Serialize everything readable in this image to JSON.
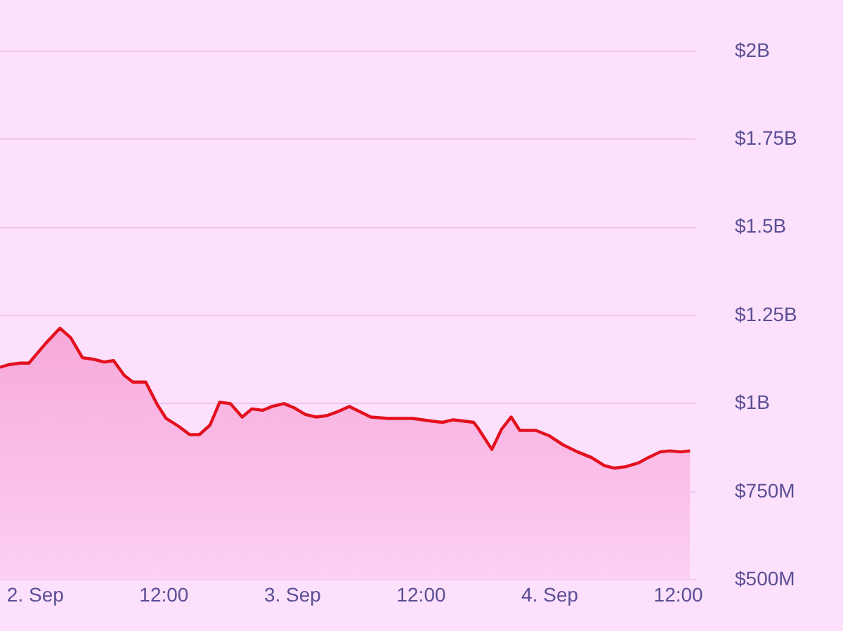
{
  "chart_data": {
    "type": "area",
    "x": [
      "--09-01T20:42",
      "--09-01T21:36",
      "--09-01T22:36",
      "--09-01T23:24",
      "--09-02T01:00",
      "--09-02T02:18",
      "--09-02T03:18",
      "--09-02T04:24",
      "--09-02T05:24",
      "--09-02T06:24",
      "--09-02T07:18",
      "--09-02T08:18",
      "--09-02T09:06",
      "--09-02T10:18",
      "--09-02T11:24",
      "--09-02T12:12",
      "--09-02T13:24",
      "--09-02T14:24",
      "--09-02T15:18",
      "--09-02T16:18",
      "--09-02T17:12",
      "--09-02T18:12",
      "--09-02T19:18",
      "--09-02T20:12",
      "--09-02T21:12",
      "--09-02T22:06",
      "--09-02T23:12",
      "--09-03T00:06",
      "--09-03T01:12",
      "--09-03T02:12",
      "--09-03T03:12",
      "--09-03T04:12",
      "--09-03T05:18",
      "--09-03T06:18",
      "--09-03T07:18",
      "--09-03T08:54",
      "--09-03T11:12",
      "--09-03T13:06",
      "--09-03T14:00",
      "--09-03T15:00",
      "--09-03T16:54",
      "--09-03T17:18",
      "--09-03T18:36",
      "--09-03T19:30",
      "--09-03T20:24",
      "--09-03T21:12",
      "--09-03T22:42",
      "--09-04T00:00",
      "--09-04T01:18",
      "--09-04T02:36",
      "--09-04T03:54",
      "--09-04T05:06",
      "--09-04T06:00",
      "--09-04T07:06",
      "--09-04T08:18",
      "--09-04T09:12",
      "--09-04T10:18",
      "--09-04T11:12",
      "--09-04T12:12",
      "--09-04T13:06"
    ],
    "series": [
      {
        "color": "#e3101e",
        "values": [
          1103000000,
          1111000000,
          1115000000,
          1115000000,
          1172000000,
          1214000000,
          1187000000,
          1130000000,
          1126000000,
          1118000000,
          1122000000,
          1080000000,
          1061000000,
          1061000000,
          996000000,
          958000000,
          935000000,
          912000000,
          912000000,
          939000000,
          1004000000,
          1000000000,
          962000000,
          985000000,
          981000000,
          992000000,
          1000000000,
          989000000,
          969000000,
          962000000,
          966000000,
          977000000,
          992000000,
          977000000,
          962000000,
          958000000,
          958000000,
          950000000,
          947000000,
          954000000,
          947000000,
          931000000,
          870000000,
          927000000,
          962000000,
          924000000,
          924000000,
          908000000,
          882000000,
          863000000,
          847000000,
          824000000,
          817000000,
          821000000,
          832000000,
          847000000,
          863000000,
          866000000,
          863000000,
          866000000
        ]
      }
    ],
    "xlim": [
      "--09-01T20:42",
      "--09-04T13:36"
    ],
    "xticks": [
      {
        "value": "--09-02T00:00",
        "label": "2. Sep"
      },
      {
        "value": "--09-02T12:00",
        "label": "12:00"
      },
      {
        "value": "--09-03T00:00",
        "label": "3. Sep"
      },
      {
        "value": "--09-03T12:00",
        "label": "12:00"
      },
      {
        "value": "--09-04T00:00",
        "label": "4. Sep"
      },
      {
        "value": "--09-04T12:00",
        "label": "12:00"
      }
    ],
    "ylim": [
      500000000,
      2000000000
    ],
    "yticks": [
      {
        "value": 500000000,
        "label": "$500M"
      },
      {
        "value": 750000000,
        "label": "$750M"
      },
      {
        "value": 1000000000,
        "label": "$1B"
      },
      {
        "value": 1250000000,
        "label": "$1.25B"
      },
      {
        "value": 1500000000,
        "label": "$1.5B"
      },
      {
        "value": 1750000000,
        "label": "$1.75B"
      },
      {
        "value": 2000000000,
        "label": "$2B"
      }
    ],
    "grid": "y",
    "legend": false,
    "marker": "none",
    "line_style": "solid"
  }
}
